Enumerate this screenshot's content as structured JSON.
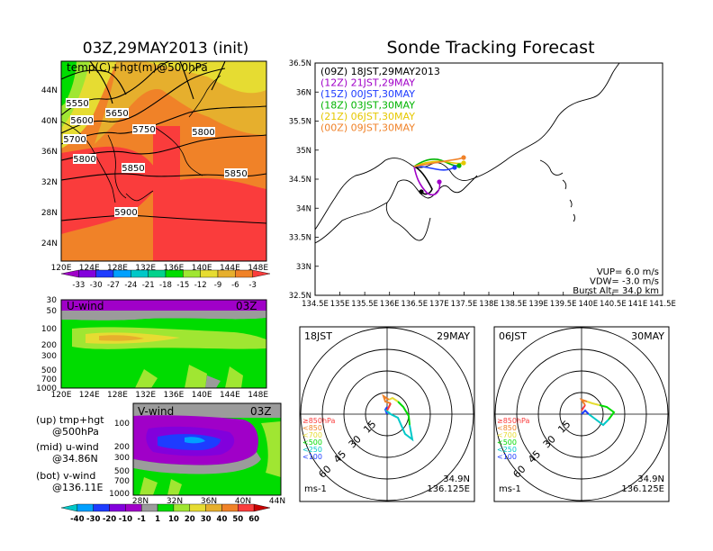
{
  "left_title": "03Z,29MAY2013 (init)",
  "right_title": "Sonde Tracking Forecast",
  "top_map": {
    "label": "temp(C)+hgt(m)@500hPa",
    "x_ticks": [
      "120E",
      "124E",
      "128E",
      "132E",
      "136E",
      "140E",
      "144E",
      "148E"
    ],
    "y_ticks": [
      "44N",
      "40N",
      "36N",
      "32N",
      "28N",
      "24N"
    ],
    "contour_labels": [
      "5550",
      "5600",
      "5650",
      "5700",
      "5750",
      "5800",
      "5800",
      "5850",
      "5850",
      "5900"
    ],
    "temp_colorbar": {
      "values": [
        "-33",
        "-30",
        "-27",
        "-24",
        "-21",
        "-18",
        "-15",
        "-12",
        "-9",
        "-6",
        "-3"
      ],
      "colors": [
        "#a000c8",
        "#8200dc",
        "#1e3cff",
        "#00a0ff",
        "#00c8c8",
        "#00d28c",
        "#00dc00",
        "#a0e632",
        "#e6dc32",
        "#e6af2d",
        "#f08228",
        "#fa3c3c"
      ]
    }
  },
  "uwind": {
    "label": "U-wind",
    "time": "03Z",
    "y_ticks": [
      "30",
      "50",
      "100",
      "200",
      "300",
      "500",
      "700",
      "1000"
    ],
    "x_ticks": [
      "120E",
      "124E",
      "128E",
      "132E",
      "136E",
      "140E",
      "144E",
      "148E"
    ]
  },
  "vwind": {
    "label": "V-wind",
    "time": "03Z",
    "y_ticks": [
      "100",
      "200",
      "300",
      "500",
      "700",
      "1000"
    ],
    "x_ticks": [
      "28N",
      "32N",
      "36N",
      "40N",
      "44N"
    ]
  },
  "captions": [
    {
      "line1": "(up) tmp+hgt",
      "line2": "@500hPa"
    },
    {
      "line1": "(mid) u-wind",
      "line2": "@34.86N"
    },
    {
      "line1": "(bot) v-wind",
      "line2": "@136.11E"
    }
  ],
  "wind_colorbar": {
    "values": [
      "-40",
      "-30",
      "-20",
      "-10",
      "-1",
      "1",
      "10",
      "20",
      "30",
      "40",
      "50",
      "60"
    ],
    "colors": [
      "#00c8c8",
      "#00a0ff",
      "#1e3cff",
      "#8200dc",
      "#a000c8",
      "#9b9b9b",
      "#00dc00",
      "#a0e632",
      "#e6dc32",
      "#e6af2d",
      "#f08228",
      "#fa3c3c",
      "#c80000"
    ]
  },
  "track_map": {
    "x_ticks": [
      "134.5E",
      "135E",
      "135.5E",
      "136E",
      "136.5E",
      "137E",
      "137.5E",
      "138E",
      "138.5E",
      "139E",
      "139.5E",
      "140E",
      "140.5E",
      "141E",
      "141.5E"
    ],
    "y_ticks": [
      "36.5N",
      "36N",
      "35.5N",
      "35N",
      "34.5N",
      "34N",
      "33.5N",
      "33N",
      "32.5N"
    ],
    "legend": [
      {
        "text": "(09Z) 18JST,29MAY2013",
        "color": "#000000"
      },
      {
        "text": "(12Z) 21JST,29MAY",
        "color": "#a000c8"
      },
      {
        "text": "(15Z) 00JST,30MAY",
        "color": "#1e3cff"
      },
      {
        "text": "(18Z) 03JST,30MAY",
        "color": "#00b400"
      },
      {
        "text": "(21Z) 06JST,30MAY",
        "color": "#e6c800"
      },
      {
        "text": "(00Z) 09JST,30MAY",
        "color": "#f08228"
      }
    ],
    "params": [
      "VUP= 6.0 m/s",
      "VDW= -3.0 m/s",
      "Burst Alt= 34.0 km"
    ]
  },
  "hodographs": [
    {
      "time": "18JST",
      "date": "29MAY",
      "lat": "34.9N",
      "lon": "136.125E",
      "unit": "ms-1"
    },
    {
      "time": "06JST",
      "date": "30MAY",
      "lat": "34.9N",
      "lon": "136.125E",
      "unit": "ms-1"
    }
  ],
  "ring_labels": [
    "15",
    "30",
    "45",
    "60"
  ],
  "level_legend": [
    {
      "text": "≥850hPa",
      "color": "#fa3c3c"
    },
    {
      "text": "<850",
      "color": "#f08228"
    },
    {
      "text": "<700",
      "color": "#e6dc32"
    },
    {
      "text": "<500",
      "color": "#00dc00"
    },
    {
      "text": "<250",
      "color": "#00c8c8"
    },
    {
      "text": "<100",
      "color": "#1e3cff"
    }
  ]
}
